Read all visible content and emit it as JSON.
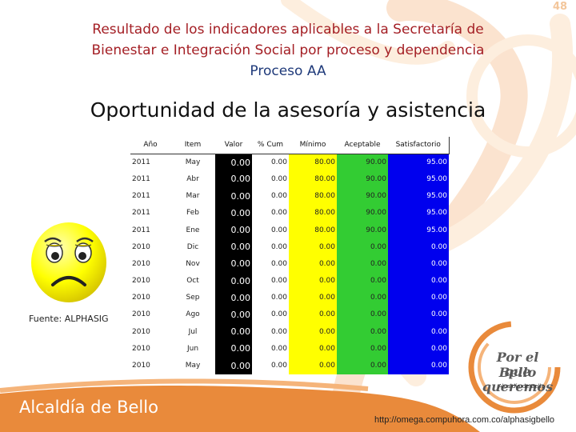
{
  "page_number": "48",
  "title": {
    "line1": "Resultado de los indicadores aplicables a la Secretaría de",
    "line2": "Bienestar e Integración Social por proceso y dependencia",
    "line3": "Proceso AA"
  },
  "subtitle": "Oportunidad de la asesoría y asistencia",
  "source": {
    "label": "Fuente",
    "value": ": ALPHASIG"
  },
  "colors": {
    "title_red": "#a41f25",
    "title_blue": "#1f3a7a",
    "valor_bg": "#000000",
    "minimo_bg": "#ffff00",
    "aceptable_bg": "#33cc33",
    "satisfactorio_bg": "#0000ee",
    "swirl_orange": "#e98a3b"
  },
  "emoticon": "sad-face-icon",
  "table": {
    "headers": [
      "Año",
      "Item",
      "Valor",
      "% Cum",
      "Mínimo",
      "Aceptable",
      "Satisfactorio"
    ],
    "rows": [
      {
        "anio": "2011",
        "item": "May",
        "valor": "0.00",
        "cum": "0.00",
        "minimo": "80.00",
        "aceptable": "90.00",
        "satisfactorio": "95.00"
      },
      {
        "anio": "2011",
        "item": "Abr",
        "valor": "0.00",
        "cum": "0.00",
        "minimo": "80.00",
        "aceptable": "90.00",
        "satisfactorio": "95.00"
      },
      {
        "anio": "2011",
        "item": "Mar",
        "valor": "0.00",
        "cum": "0.00",
        "minimo": "80.00",
        "aceptable": "90.00",
        "satisfactorio": "95.00"
      },
      {
        "anio": "2011",
        "item": "Feb",
        "valor": "0.00",
        "cum": "0.00",
        "minimo": "80.00",
        "aceptable": "90.00",
        "satisfactorio": "95.00"
      },
      {
        "anio": "2011",
        "item": "Ene",
        "valor": "0.00",
        "cum": "0.00",
        "minimo": "80.00",
        "aceptable": "90.00",
        "satisfactorio": "95.00"
      },
      {
        "anio": "2010",
        "item": "Dic",
        "valor": "0.00",
        "cum": "0.00",
        "minimo": "0.00",
        "aceptable": "0.00",
        "satisfactorio": "0.00"
      },
      {
        "anio": "2010",
        "item": "Nov",
        "valor": "0.00",
        "cum": "0.00",
        "minimo": "0.00",
        "aceptable": "0.00",
        "satisfactorio": "0.00"
      },
      {
        "anio": "2010",
        "item": "Oct",
        "valor": "0.00",
        "cum": "0.00",
        "minimo": "0.00",
        "aceptable": "0.00",
        "satisfactorio": "0.00"
      },
      {
        "anio": "2010",
        "item": "Sep",
        "valor": "0.00",
        "cum": "0.00",
        "minimo": "0.00",
        "aceptable": "0.00",
        "satisfactorio": "0.00"
      },
      {
        "anio": "2010",
        "item": "Ago",
        "valor": "0.00",
        "cum": "0.00",
        "minimo": "0.00",
        "aceptable": "0.00",
        "satisfactorio": "0.00"
      },
      {
        "anio": "2010",
        "item": "Jul",
        "valor": "0.00",
        "cum": "0.00",
        "minimo": "0.00",
        "aceptable": "0.00",
        "satisfactorio": "0.00"
      },
      {
        "anio": "2010",
        "item": "Jun",
        "valor": "0.00",
        "cum": "0.00",
        "minimo": "0.00",
        "aceptable": "0.00",
        "satisfactorio": "0.00"
      },
      {
        "anio": "2010",
        "item": "May",
        "valor": "0.00",
        "cum": "0.00",
        "minimo": "0.00",
        "aceptable": "0.00",
        "satisfactorio": "0.00"
      }
    ]
  },
  "footer": {
    "logo_text": "Alcaldía de Bello",
    "brand_line1": "Por el Bello",
    "brand_line2": "que queremos",
    "brand_line3": "Alcaldía de Bello",
    "url": "http://omega.compuhora.com.co/alphasigbello"
  }
}
